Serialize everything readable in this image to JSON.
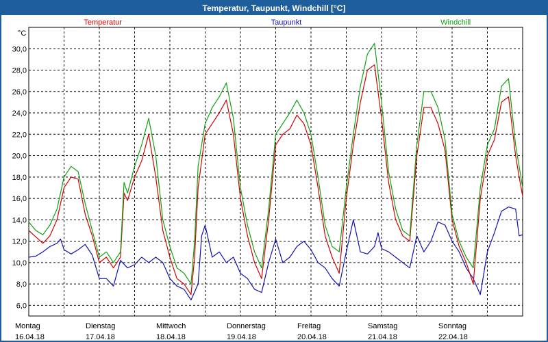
{
  "window": {
    "title": "Temperatur, Taupunkt, Windchill [°C]"
  },
  "chart_data": {
    "type": "line",
    "title": "Temperatur, Taupunkt, Windchill [°C]",
    "ylabel": "°C",
    "ylim": [
      5.0,
      32.0
    ],
    "yticks": [
      "6,0",
      "8,0",
      "10,0",
      "12,0",
      "14,0",
      "16,0",
      "18,0",
      "20,0",
      "22,0",
      "24,0",
      "26,0",
      "28,0",
      "30,0"
    ],
    "xlim": [
      0,
      7
    ],
    "day_labels": [
      {
        "day": "Montag",
        "date": "16.04.18"
      },
      {
        "day": "Dienstag",
        "date": "17.04.18"
      },
      {
        "day": "Mittwoch",
        "date": "18.04.18"
      },
      {
        "day": "Donnerstag",
        "date": "19.04.18"
      },
      {
        "day": "Freitag",
        "date": "20.04.18"
      },
      {
        "day": "Samstag",
        "date": "21.04.18"
      },
      {
        "day": "Sonntag",
        "date": "22.04.18"
      }
    ],
    "grid": true,
    "series": [
      {
        "name": "Temperatur",
        "color": "#d00000",
        "points": [
          [
            0.0,
            13.0
          ],
          [
            0.1,
            12.4
          ],
          [
            0.2,
            11.8
          ],
          [
            0.3,
            12.5
          ],
          [
            0.4,
            14.0
          ],
          [
            0.5,
            17.0
          ],
          [
            0.6,
            18.0
          ],
          [
            0.7,
            17.8
          ],
          [
            0.8,
            14.5
          ],
          [
            0.9,
            12.5
          ],
          [
            1.0,
            10.0
          ],
          [
            1.1,
            10.5
          ],
          [
            1.2,
            9.5
          ],
          [
            1.3,
            10.5
          ],
          [
            1.35,
            16.5
          ],
          [
            1.4,
            15.8
          ],
          [
            1.5,
            18.0
          ],
          [
            1.6,
            19.5
          ],
          [
            1.7,
            22.0
          ],
          [
            1.8,
            18.0
          ],
          [
            1.9,
            13.0
          ],
          [
            2.0,
            10.5
          ],
          [
            2.1,
            8.5
          ],
          [
            2.2,
            8.0
          ],
          [
            2.3,
            7.0
          ],
          [
            2.35,
            10.5
          ],
          [
            2.4,
            17.0
          ],
          [
            2.5,
            22.0
          ],
          [
            2.6,
            23.0
          ],
          [
            2.7,
            24.0
          ],
          [
            2.8,
            25.2
          ],
          [
            2.9,
            22.0
          ],
          [
            3.0,
            16.0
          ],
          [
            3.1,
            12.5
          ],
          [
            3.2,
            10.0
          ],
          [
            3.3,
            8.5
          ],
          [
            3.4,
            14.0
          ],
          [
            3.5,
            21.0
          ],
          [
            3.6,
            22.0
          ],
          [
            3.7,
            22.5
          ],
          [
            3.8,
            23.8
          ],
          [
            3.9,
            23.0
          ],
          [
            4.0,
            21.0
          ],
          [
            4.1,
            17.0
          ],
          [
            4.2,
            12.5
          ],
          [
            4.3,
            10.5
          ],
          [
            4.4,
            9.0
          ],
          [
            4.5,
            16.0
          ],
          [
            4.6,
            21.0
          ],
          [
            4.7,
            25.0
          ],
          [
            4.8,
            28.0
          ],
          [
            4.9,
            28.5
          ],
          [
            5.0,
            23.5
          ],
          [
            5.1,
            17.5
          ],
          [
            5.2,
            14.0
          ],
          [
            5.3,
            12.5
          ],
          [
            5.4,
            12.0
          ],
          [
            5.5,
            20.0
          ],
          [
            5.6,
            24.5
          ],
          [
            5.7,
            24.5
          ],
          [
            5.8,
            23.0
          ],
          [
            5.9,
            20.5
          ],
          [
            6.0,
            14.0
          ],
          [
            6.1,
            11.5
          ],
          [
            6.2,
            10.0
          ],
          [
            6.3,
            8.0
          ],
          [
            6.4,
            16.0
          ],
          [
            6.5,
            20.0
          ],
          [
            6.6,
            21.5
          ],
          [
            6.7,
            25.0
          ],
          [
            6.8,
            25.5
          ],
          [
            6.9,
            20.0
          ],
          [
            6.95,
            18.0
          ],
          [
            7.0,
            16.2
          ]
        ]
      },
      {
        "name": "Taupunkt",
        "color": "#1010b0",
        "points": [
          [
            0.0,
            10.5
          ],
          [
            0.1,
            10.6
          ],
          [
            0.2,
            11.0
          ],
          [
            0.3,
            11.5
          ],
          [
            0.4,
            11.8
          ],
          [
            0.45,
            12.2
          ],
          [
            0.5,
            11.2
          ],
          [
            0.6,
            10.8
          ],
          [
            0.7,
            11.2
          ],
          [
            0.8,
            11.7
          ],
          [
            0.9,
            10.7
          ],
          [
            1.0,
            8.5
          ],
          [
            1.1,
            8.5
          ],
          [
            1.2,
            7.8
          ],
          [
            1.3,
            10.2
          ],
          [
            1.4,
            9.5
          ],
          [
            1.5,
            9.8
          ],
          [
            1.6,
            10.5
          ],
          [
            1.7,
            10.0
          ],
          [
            1.8,
            10.5
          ],
          [
            1.9,
            10.0
          ],
          [
            2.0,
            8.5
          ],
          [
            2.1,
            7.8
          ],
          [
            2.2,
            7.5
          ],
          [
            2.3,
            6.5
          ],
          [
            2.4,
            8.0
          ],
          [
            2.45,
            12.5
          ],
          [
            2.5,
            13.5
          ],
          [
            2.6,
            10.5
          ],
          [
            2.7,
            11.0
          ],
          [
            2.8,
            10.0
          ],
          [
            2.9,
            10.5
          ],
          [
            3.0,
            9.0
          ],
          [
            3.1,
            8.5
          ],
          [
            3.2,
            7.5
          ],
          [
            3.3,
            7.2
          ],
          [
            3.4,
            10.0
          ],
          [
            3.5,
            12.2
          ],
          [
            3.6,
            10.0
          ],
          [
            3.7,
            10.5
          ],
          [
            3.8,
            11.5
          ],
          [
            3.9,
            12.0
          ],
          [
            4.0,
            11.2
          ],
          [
            4.1,
            10.0
          ],
          [
            4.2,
            9.5
          ],
          [
            4.3,
            8.5
          ],
          [
            4.4,
            7.8
          ],
          [
            4.5,
            11.0
          ],
          [
            4.6,
            14.0
          ],
          [
            4.7,
            11.0
          ],
          [
            4.8,
            10.8
          ],
          [
            4.9,
            11.5
          ],
          [
            4.95,
            12.8
          ],
          [
            5.0,
            11.3
          ],
          [
            5.1,
            11.0
          ],
          [
            5.2,
            10.5
          ],
          [
            5.3,
            10.0
          ],
          [
            5.4,
            9.5
          ],
          [
            5.5,
            12.5
          ],
          [
            5.6,
            11.0
          ],
          [
            5.7,
            12.0
          ],
          [
            5.8,
            13.8
          ],
          [
            5.9,
            13.5
          ],
          [
            6.0,
            12.0
          ],
          [
            6.1,
            11.0
          ],
          [
            6.2,
            9.5
          ],
          [
            6.3,
            8.5
          ],
          [
            6.4,
            7.0
          ],
          [
            6.5,
            11.0
          ],
          [
            6.6,
            12.8
          ],
          [
            6.7,
            14.8
          ],
          [
            6.8,
            15.2
          ],
          [
            6.9,
            15.0
          ],
          [
            6.95,
            12.5
          ],
          [
            7.0,
            12.6
          ]
        ]
      },
      {
        "name": "Windchill",
        "color": "#10a010",
        "points": [
          [
            0.0,
            13.8
          ],
          [
            0.1,
            13.0
          ],
          [
            0.2,
            12.6
          ],
          [
            0.3,
            13.5
          ],
          [
            0.4,
            15.0
          ],
          [
            0.5,
            18.0
          ],
          [
            0.6,
            19.0
          ],
          [
            0.7,
            18.5
          ],
          [
            0.8,
            15.5
          ],
          [
            0.9,
            13.0
          ],
          [
            1.0,
            10.5
          ],
          [
            1.1,
            11.0
          ],
          [
            1.2,
            10.0
          ],
          [
            1.3,
            11.0
          ],
          [
            1.35,
            17.5
          ],
          [
            1.4,
            16.5
          ],
          [
            1.5,
            19.0
          ],
          [
            1.6,
            21.0
          ],
          [
            1.7,
            23.5
          ],
          [
            1.8,
            20.0
          ],
          [
            1.9,
            14.0
          ],
          [
            2.0,
            11.5
          ],
          [
            2.1,
            9.5
          ],
          [
            2.2,
            9.0
          ],
          [
            2.3,
            8.0
          ],
          [
            2.35,
            12.0
          ],
          [
            2.4,
            19.0
          ],
          [
            2.5,
            23.0
          ],
          [
            2.6,
            24.5
          ],
          [
            2.7,
            25.5
          ],
          [
            2.8,
            26.8
          ],
          [
            2.9,
            23.5
          ],
          [
            3.0,
            17.0
          ],
          [
            3.1,
            13.5
          ],
          [
            3.2,
            11.0
          ],
          [
            3.3,
            9.5
          ],
          [
            3.4,
            15.0
          ],
          [
            3.5,
            22.0
          ],
          [
            3.6,
            23.0
          ],
          [
            3.7,
            24.0
          ],
          [
            3.8,
            25.2
          ],
          [
            3.9,
            24.0
          ],
          [
            4.0,
            22.0
          ],
          [
            4.1,
            18.0
          ],
          [
            4.2,
            13.5
          ],
          [
            4.3,
            11.5
          ],
          [
            4.4,
            11.0
          ],
          [
            4.5,
            17.0
          ],
          [
            4.6,
            22.0
          ],
          [
            4.7,
            26.5
          ],
          [
            4.8,
            29.5
          ],
          [
            4.9,
            30.5
          ],
          [
            5.0,
            25.0
          ],
          [
            5.1,
            18.5
          ],
          [
            5.2,
            15.0
          ],
          [
            5.3,
            13.0
          ],
          [
            5.4,
            12.5
          ],
          [
            5.5,
            21.0
          ],
          [
            5.6,
            26.0
          ],
          [
            5.7,
            26.0
          ],
          [
            5.8,
            24.5
          ],
          [
            5.9,
            21.5
          ],
          [
            6.0,
            14.5
          ],
          [
            6.1,
            12.0
          ],
          [
            6.2,
            10.5
          ],
          [
            6.3,
            9.5
          ],
          [
            6.4,
            17.0
          ],
          [
            6.5,
            21.0
          ],
          [
            6.6,
            22.5
          ],
          [
            6.7,
            26.5
          ],
          [
            6.8,
            27.2
          ],
          [
            6.9,
            21.0
          ],
          [
            6.95,
            19.0
          ],
          [
            7.0,
            17.0
          ]
        ]
      }
    ]
  }
}
